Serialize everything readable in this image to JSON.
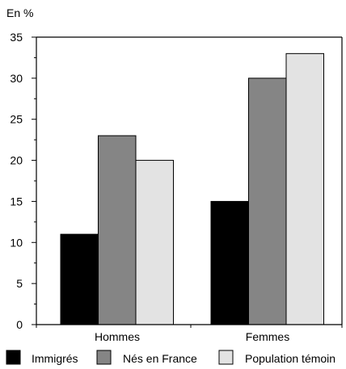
{
  "chart_data": {
    "type": "bar",
    "ylabel": "En %",
    "ylim": [
      0,
      35
    ],
    "yticks": [
      0,
      5,
      10,
      15,
      20,
      25,
      30,
      35
    ],
    "categories": [
      "Hommes",
      "Femmes"
    ],
    "series": [
      {
        "name": "Immigrés",
        "values": [
          11,
          15
        ],
        "color": "#000000"
      },
      {
        "name": "Nés en France",
        "values": [
          23,
          30
        ],
        "color": "#858585"
      },
      {
        "name": "Population témoin",
        "values": [
          20,
          33
        ],
        "color": "#e3e3e3"
      }
    ],
    "grid": false,
    "legend": "bottom"
  }
}
